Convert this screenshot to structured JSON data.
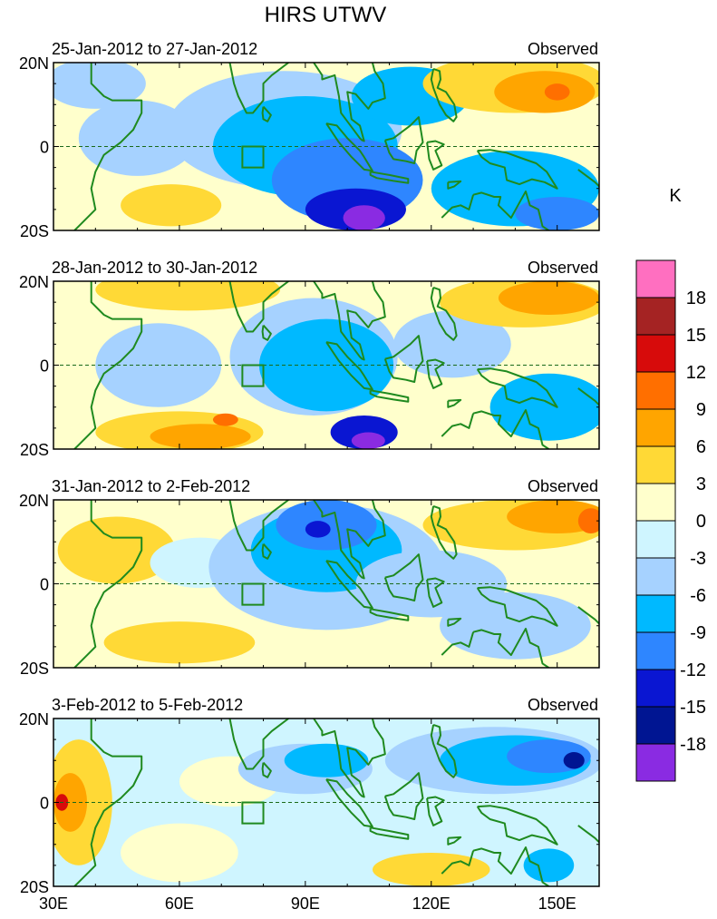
{
  "chart_data": {
    "type": "heatmap",
    "title": "HIRS UTWV",
    "units": "K",
    "colorbar": {
      "levels": [
        "18",
        "15",
        "12",
        "9",
        "6",
        "3",
        "0",
        "-3",
        "-6",
        "-9",
        "-12",
        "-15",
        "-18"
      ],
      "colors": [
        "#ff6fc0",
        "#a52323",
        "#d70b0b",
        "#ff6f00",
        "#ffa500",
        "#ffd936",
        "#ffffcc",
        "#cff5ff",
        "#a6d2ff",
        "#00b9ff",
        "#2e86ff",
        "#0a16d2",
        "#001592",
        "#8a2be2"
      ]
    },
    "x_ticks": [
      "30E",
      "60E",
      "90E",
      "120E",
      "150E"
    ],
    "y_ticks": [
      "20N",
      "0",
      "20S"
    ],
    "xlim": [
      30,
      160
    ],
    "ylim": [
      -20,
      20
    ],
    "panels": [
      {
        "period": "25-Jan-2012 to 27-Jan-2012",
        "label": "Observed",
        "base_level": "3",
        "blobs": [
          {
            "lon": 40,
            "lat": 15,
            "rx": 12,
            "ry": 6,
            "level": "-3"
          },
          {
            "lon": 58,
            "lat": -14,
            "rx": 12,
            "ry": 5,
            "level": "6"
          },
          {
            "lon": 50,
            "lat": 2,
            "rx": 14,
            "ry": 9,
            "level": "-3"
          },
          {
            "lon": 85,
            "lat": 4,
            "rx": 28,
            "ry": 14,
            "level": "-3"
          },
          {
            "lon": 90,
            "lat": 0,
            "rx": 22,
            "ry": 12,
            "level": "-6"
          },
          {
            "lon": 100,
            "lat": -8,
            "rx": 18,
            "ry": 10,
            "level": "-9"
          },
          {
            "lon": 102,
            "lat": -15,
            "rx": 12,
            "ry": 5,
            "level": "-12"
          },
          {
            "lon": 104,
            "lat": -17,
            "rx": 5,
            "ry": 3,
            "level": "-18"
          },
          {
            "lon": 115,
            "lat": 12,
            "rx": 14,
            "ry": 7,
            "level": "-6"
          },
          {
            "lon": 140,
            "lat": 15,
            "rx": 22,
            "ry": 7,
            "level": "6"
          },
          {
            "lon": 147,
            "lat": 13,
            "rx": 12,
            "ry": 5,
            "level": "9"
          },
          {
            "lon": 150,
            "lat": 13,
            "rx": 3,
            "ry": 2,
            "level": "12"
          },
          {
            "lon": 140,
            "lat": -10,
            "rx": 20,
            "ry": 9,
            "level": "-6"
          },
          {
            "lon": 150,
            "lat": -16,
            "rx": 10,
            "ry": 4,
            "level": "-9"
          }
        ]
      },
      {
        "period": "28-Jan-2012 to 30-Jan-2012",
        "label": "Observed",
        "base_level": "3",
        "blobs": [
          {
            "lon": 62,
            "lat": 18,
            "rx": 22,
            "ry": 5,
            "level": "6"
          },
          {
            "lon": 55,
            "lat": 0,
            "rx": 15,
            "ry": 10,
            "level": "-3"
          },
          {
            "lon": 60,
            "lat": -16,
            "rx": 20,
            "ry": 5,
            "level": "6"
          },
          {
            "lon": 65,
            "lat": -17,
            "rx": 12,
            "ry": 3,
            "level": "9"
          },
          {
            "lon": 71,
            "lat": -13,
            "rx": 3,
            "ry": 1.5,
            "level": "12"
          },
          {
            "lon": 92,
            "lat": 2,
            "rx": 20,
            "ry": 14,
            "level": "-3"
          },
          {
            "lon": 95,
            "lat": 0,
            "rx": 16,
            "ry": 11,
            "level": "-6"
          },
          {
            "lon": 104,
            "lat": -16,
            "rx": 8,
            "ry": 4,
            "level": "-12"
          },
          {
            "lon": 105,
            "lat": -18,
            "rx": 4,
            "ry": 2,
            "level": "-18"
          },
          {
            "lon": 125,
            "lat": 5,
            "rx": 14,
            "ry": 8,
            "level": "-3"
          },
          {
            "lon": 142,
            "lat": 15,
            "rx": 20,
            "ry": 6,
            "level": "6"
          },
          {
            "lon": 148,
            "lat": 16,
            "rx": 12,
            "ry": 4,
            "level": "9"
          },
          {
            "lon": 148,
            "lat": -10,
            "rx": 14,
            "ry": 8,
            "level": "-6"
          }
        ]
      },
      {
        "period": "31-Jan-2012 to 2-Feb-2012",
        "label": "Observed",
        "base_level": "3",
        "blobs": [
          {
            "lon": 45,
            "lat": 8,
            "rx": 14,
            "ry": 8,
            "level": "6"
          },
          {
            "lon": 60,
            "lat": -14,
            "rx": 18,
            "ry": 5,
            "level": "6"
          },
          {
            "lon": 65,
            "lat": 5,
            "rx": 12,
            "ry": 6,
            "level": "0"
          },
          {
            "lon": 95,
            "lat": 4,
            "rx": 28,
            "ry": 15,
            "level": "-3"
          },
          {
            "lon": 95,
            "lat": 8,
            "rx": 18,
            "ry": 10,
            "level": "-6"
          },
          {
            "lon": 95,
            "lat": 14,
            "rx": 12,
            "ry": 6,
            "level": "-9"
          },
          {
            "lon": 93,
            "lat": 13,
            "rx": 3,
            "ry": 2,
            "level": "-12"
          },
          {
            "lon": 120,
            "lat": 0,
            "rx": 18,
            "ry": 8,
            "level": "-3"
          },
          {
            "lon": 140,
            "lat": 14,
            "rx": 22,
            "ry": 6,
            "level": "6"
          },
          {
            "lon": 150,
            "lat": 16,
            "rx": 12,
            "ry": 4,
            "level": "9"
          },
          {
            "lon": 158,
            "lat": 15,
            "rx": 3,
            "ry": 3,
            "level": "12"
          },
          {
            "lon": 140,
            "lat": -10,
            "rx": 18,
            "ry": 8,
            "level": "-3"
          }
        ]
      },
      {
        "period": "3-Feb-2012 to 5-Feb-2012",
        "label": "Observed",
        "base_level": "0",
        "blobs": [
          {
            "lon": 36,
            "lat": 0,
            "rx": 8,
            "ry": 15,
            "level": "6"
          },
          {
            "lon": 34,
            "lat": 0,
            "rx": 4,
            "ry": 7,
            "level": "9"
          },
          {
            "lon": 32,
            "lat": 0,
            "rx": 1.5,
            "ry": 2,
            "level": "15"
          },
          {
            "lon": 60,
            "lat": -12,
            "rx": 14,
            "ry": 7,
            "level": "3"
          },
          {
            "lon": 72,
            "lat": 5,
            "rx": 12,
            "ry": 6,
            "level": "3"
          },
          {
            "lon": 90,
            "lat": 8,
            "rx": 16,
            "ry": 6,
            "level": "-3"
          },
          {
            "lon": 95,
            "lat": 10,
            "rx": 10,
            "ry": 4,
            "level": "-6"
          },
          {
            "lon": 135,
            "lat": 10,
            "rx": 26,
            "ry": 8,
            "level": "-3"
          },
          {
            "lon": 140,
            "lat": 10,
            "rx": 18,
            "ry": 6,
            "level": "-6"
          },
          {
            "lon": 148,
            "lat": 11,
            "rx": 10,
            "ry": 4,
            "level": "-9"
          },
          {
            "lon": 154,
            "lat": 10,
            "rx": 2.5,
            "ry": 2,
            "level": "-15"
          },
          {
            "lon": 120,
            "lat": -16,
            "rx": 14,
            "ry": 4,
            "level": "6"
          },
          {
            "lon": 148,
            "lat": -15,
            "rx": 6,
            "ry": 4,
            "level": "-6"
          }
        ]
      }
    ]
  }
}
